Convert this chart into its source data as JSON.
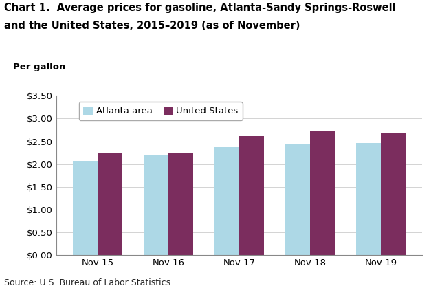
{
  "title_line1": "Chart 1.  Average prices for gasoline, Atlanta-Sandy Springs-Roswell",
  "title_line2": "and the United States, 2015–2019 (as of November)",
  "ylabel": "Per gallon",
  "source": "Source: U.S. Bureau of Labor Statistics.",
  "categories": [
    "Nov-15",
    "Nov-16",
    "Nov-17",
    "Nov-18",
    "Nov-19"
  ],
  "atlanta_values": [
    2.07,
    2.19,
    2.38,
    2.43,
    2.47
  ],
  "us_values": [
    2.24,
    2.24,
    2.61,
    2.72,
    2.68
  ],
  "atlanta_color": "#ADD8E6",
  "us_color": "#7B2D5E",
  "bar_width": 0.35,
  "ylim": [
    0.0,
    3.5
  ],
  "yticks": [
    0.0,
    0.5,
    1.0,
    1.5,
    2.0,
    2.5,
    3.0,
    3.5
  ],
  "legend_atlanta": "Atlanta area",
  "legend_us": "United States",
  "title_fontsize": 10.5,
  "tick_fontsize": 9.5,
  "legend_fontsize": 9.5,
  "source_fontsize": 9
}
